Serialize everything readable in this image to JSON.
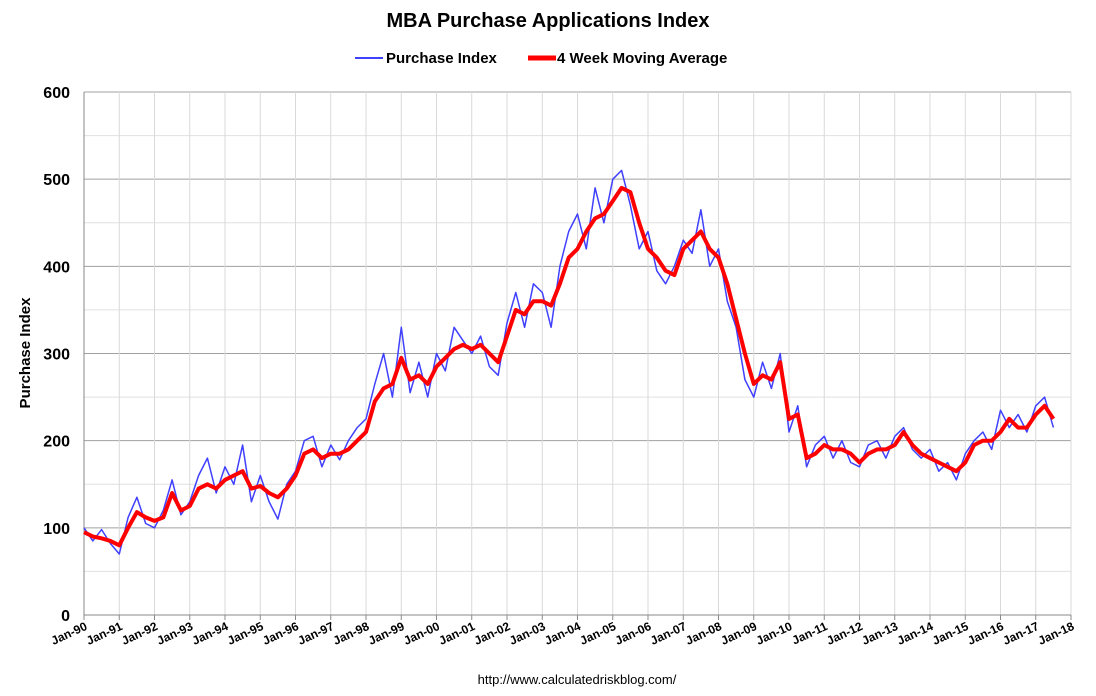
{
  "chart_data": {
    "type": "line",
    "title": "MBA Purchase Applications Index",
    "ylabel": "Purchase Index",
    "xlabel": "",
    "ylim": [
      0,
      600
    ],
    "yticks": [
      0,
      100,
      200,
      300,
      400,
      500,
      600
    ],
    "xlim": [
      1990,
      2018
    ],
    "xtick_labels": [
      "Jan-90",
      "Jan-91",
      "Jan-92",
      "Jan-93",
      "Jan-94",
      "Jan-95",
      "Jan-96",
      "Jan-97",
      "Jan-98",
      "Jan-99",
      "Jan-00",
      "Jan-01",
      "Jan-02",
      "Jan-03",
      "Jan-04",
      "Jan-05",
      "Jan-06",
      "Jan-07",
      "Jan-08",
      "Jan-09",
      "Jan-10",
      "Jan-11",
      "Jan-12",
      "Jan-13",
      "Jan-14",
      "Jan-15",
      "Jan-16",
      "Jan-17",
      "Jan-18"
    ],
    "grid": true,
    "legend_position": "top",
    "x_start": "Jan-90",
    "x_step": "quarter",
    "series": [
      {
        "name": "Purchase Index",
        "color": "#4040ff",
        "values": [
          100,
          85,
          98,
          82,
          70,
          112,
          135,
          105,
          100,
          120,
          155,
          115,
          130,
          160,
          180,
          140,
          170,
          150,
          195,
          130,
          160,
          130,
          110,
          150,
          165,
          200,
          205,
          170,
          195,
          178,
          200,
          215,
          225,
          265,
          300,
          250,
          330,
          255,
          290,
          250,
          300,
          280,
          330,
          315,
          300,
          320,
          285,
          275,
          335,
          370,
          330,
          380,
          370,
          330,
          400,
          440,
          460,
          420,
          490,
          450,
          500,
          510,
          470,
          420,
          440,
          395,
          380,
          400,
          430,
          415,
          465,
          400,
          420,
          360,
          330,
          270,
          250,
          290,
          260,
          300,
          210,
          240,
          170,
          195,
          205,
          180,
          200,
          175,
          170,
          195,
          200,
          180,
          205,
          215,
          190,
          180,
          190,
          165,
          175,
          155,
          185,
          200,
          210,
          190,
          235,
          215,
          230,
          210,
          240,
          250,
          215
        ]
      },
      {
        "name": "4 Week Moving Average",
        "color": "#ff0000",
        "values": [
          95,
          90,
          88,
          85,
          80,
          100,
          118,
          112,
          108,
          112,
          140,
          120,
          125,
          145,
          150,
          145,
          155,
          160,
          165,
          145,
          148,
          140,
          135,
          145,
          160,
          185,
          190,
          180,
          185,
          185,
          190,
          200,
          210,
          245,
          260,
          265,
          295,
          270,
          275,
          265,
          285,
          295,
          305,
          310,
          305,
          310,
          300,
          290,
          320,
          350,
          345,
          360,
          360,
          355,
          380,
          410,
          420,
          440,
          455,
          460,
          475,
          490,
          485,
          450,
          420,
          410,
          395,
          390,
          420,
          430,
          440,
          420,
          410,
          380,
          340,
          300,
          265,
          275,
          270,
          290,
          225,
          230,
          180,
          185,
          195,
          190,
          190,
          185,
          175,
          185,
          190,
          190,
          195,
          210,
          195,
          185,
          180,
          175,
          170,
          165,
          175,
          195,
          200,
          200,
          210,
          225,
          215,
          215,
          230,
          240,
          225
        ]
      }
    ]
  },
  "footer": {
    "source": "http://www.calculatedriskblog.com/"
  }
}
